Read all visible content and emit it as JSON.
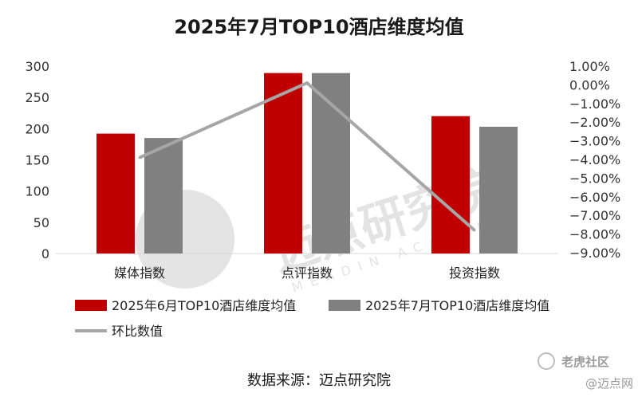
{
  "chart_data": {
    "type": "bar",
    "title": "2025年7月TOP10酒店维度均值",
    "categories": [
      "媒体指数",
      "点评指数",
      "投资指数"
    ],
    "series": [
      {
        "name": "2025年6月TOP10酒店维度均值",
        "values": [
          192,
          289,
          220
        ],
        "color": "#c00000"
      },
      {
        "name": "2025年7月TOP10酒店维度均值",
        "values": [
          185,
          289,
          203
        ],
        "color": "#808080"
      }
    ],
    "line_series": {
      "name": "环比数值",
      "values": [
        -3.9,
        0.1,
        -7.8
      ],
      "axis": "right",
      "color": "#a6a6a6"
    },
    "ylim": [
      0,
      300
    ],
    "y_ticks": [
      "0",
      "50",
      "100",
      "150",
      "200",
      "250",
      "300"
    ],
    "y2lim": [
      -9.0,
      1.0
    ],
    "y2_ticks": [
      "1.00%",
      "0.00%",
      "-1.00%",
      "-2.00%",
      "-3.00%",
      "-4.00%",
      "-5.00%",
      "-6.00%",
      "-7.00%",
      "-8.00%",
      "-9.00%"
    ],
    "grid": false,
    "legend": "bottom",
    "source": "数据来源：迈点研究院"
  },
  "watermark": {
    "text": "迈点研究院",
    "subtext": "MEADIN ACADEMY"
  },
  "corner_watermarks": [
    "老虎社区",
    "@迈点网"
  ]
}
